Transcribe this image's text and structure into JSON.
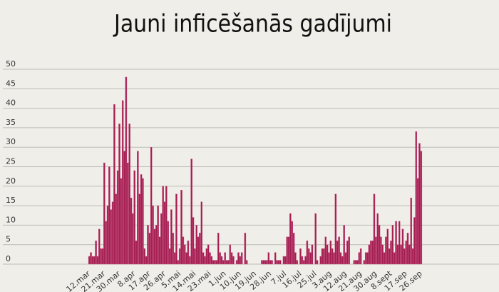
{
  "chart_data": {
    "type": "bar",
    "title": "Jauni inficēšanās gadījumi",
    "categories": [
      "12.mar",
      null,
      null,
      null,
      null,
      null,
      null,
      null,
      null,
      "21.mar",
      null,
      null,
      null,
      null,
      null,
      null,
      null,
      null,
      "30.mar",
      null,
      null,
      null,
      null,
      null,
      null,
      null,
      null,
      "8.apr",
      null,
      null,
      null,
      null,
      null,
      null,
      null,
      null,
      "17.apr",
      null,
      null,
      null,
      null,
      null,
      null,
      null,
      null,
      "26.apr",
      null,
      null,
      null,
      null,
      null,
      null,
      null,
      null,
      "5.mai",
      null,
      null,
      null,
      null,
      null,
      null,
      null,
      null,
      "14.mai",
      null,
      null,
      null,
      null,
      null,
      null,
      null,
      null,
      "23.mai",
      null,
      null,
      null,
      null,
      null,
      null,
      null,
      null,
      "1.jun",
      null,
      null,
      null,
      null,
      null,
      null,
      null,
      null,
      "10.jun",
      null,
      null,
      null,
      null,
      null,
      null,
      null,
      null,
      "19.jun",
      null,
      null,
      null,
      null,
      null,
      null,
      null,
      null,
      "28.jun",
      null,
      null,
      null,
      null,
      null,
      null,
      null,
      null,
      "7.jul",
      null,
      null,
      null,
      null,
      null,
      null,
      null,
      null,
      "16.jul",
      null,
      null,
      null,
      null,
      null,
      null,
      null,
      null,
      "25.jul",
      null,
      null,
      null,
      null,
      null,
      null,
      null,
      null,
      "3.aug",
      null,
      null,
      null,
      null,
      null,
      null,
      null,
      null,
      "12.aug",
      null,
      null,
      null,
      null,
      null,
      null,
      null,
      null,
      "21.aug",
      null,
      null,
      null,
      null,
      null,
      null,
      null,
      null,
      "30.aug",
      null,
      null,
      null,
      null,
      null,
      null,
      null,
      null,
      "8.sept",
      null,
      null,
      null,
      null,
      null,
      null,
      null,
      null,
      "17.sep",
      null,
      null,
      null,
      null,
      null,
      null,
      null,
      null,
      "26.sep"
    ],
    "values": [
      2,
      3,
      2,
      2,
      6,
      2,
      9,
      4,
      4,
      26,
      11,
      15,
      25,
      14,
      16,
      41,
      18,
      24,
      36,
      22,
      42,
      29,
      48,
      26,
      36,
      17,
      13,
      24,
      6,
      29,
      18,
      23,
      22,
      4,
      2,
      10,
      8,
      30,
      15,
      9,
      10,
      15,
      7,
      13,
      20,
      16,
      20,
      11,
      4,
      14,
      8,
      3,
      18,
      1,
      4,
      19,
      7,
      5,
      3,
      6,
      2,
      27,
      12,
      4,
      10,
      7,
      8,
      16,
      3,
      2,
      4,
      5,
      3,
      2,
      1,
      1,
      1,
      8,
      3,
      2,
      1,
      3,
      1,
      1,
      5,
      3,
      2,
      0,
      1,
      3,
      2,
      3,
      0,
      8,
      1,
      0,
      0,
      0,
      0,
      0,
      0,
      0,
      0,
      1,
      1,
      1,
      1,
      3,
      1,
      1,
      0,
      3,
      1,
      1,
      1,
      0,
      2,
      2,
      7,
      7,
      13,
      11,
      8,
      3,
      1,
      0,
      4,
      2,
      1,
      2,
      6,
      4,
      3,
      5,
      0,
      13,
      1,
      0,
      2,
      4,
      4,
      7,
      5,
      3,
      6,
      4,
      3,
      18,
      6,
      7,
      3,
      2,
      10,
      3,
      6,
      7,
      0,
      0,
      1,
      1,
      1,
      3,
      4,
      0,
      1,
      3,
      3,
      5,
      6,
      6,
      18,
      7,
      13,
      10,
      7,
      5,
      3,
      7,
      9,
      4,
      6,
      10,
      3,
      11,
      5,
      11,
      5,
      9,
      4,
      6,
      8,
      5,
      17,
      4,
      12,
      34,
      22,
      31,
      29
    ],
    "color": "#a51d52",
    "ylim": [
      0,
      50
    ],
    "yticks": [
      0,
      5,
      10,
      15,
      20,
      25,
      30,
      35,
      40,
      45,
      50
    ],
    "grid": true
  }
}
